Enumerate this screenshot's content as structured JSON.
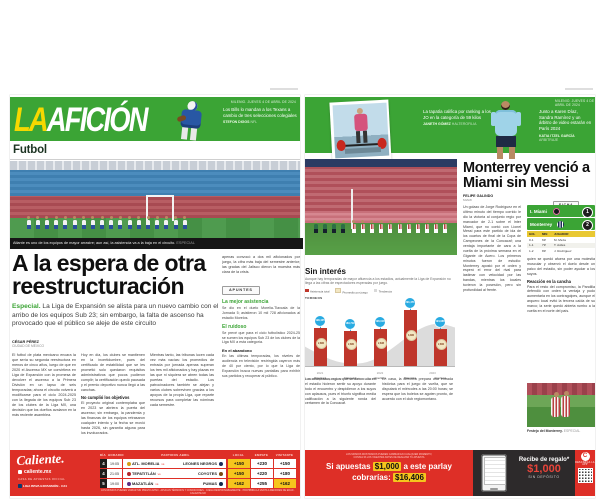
{
  "dateline": "MILENIO. JUEVES 4 DE ABRIL DE 2024",
  "left": {
    "brand_la": "LA",
    "brand_aficion": "AFICIÓN",
    "nfl_promo": {
      "text": "Los Bills lo mandan a los Texans a cambio de tres selecciones colegiales",
      "name": "STEFON DIGGS",
      "tag": "NFL"
    },
    "section": "Futbol",
    "photo_caption": "Atlante es uno de los equipos de mayor arrastre; aun así, la asistencia va a la baja en el circuito.",
    "photo_credit": "ESPECIAL",
    "headline": "A la espera de otra reestructuración",
    "deck_lead": "Especial.",
    "deck": " La Liga de Expansión se alista para un nuevo cambio con el arribo de los equipos Sub 23; sin embargo, la falta de ascenso ha provocado que el público se aleje de este circuito",
    "byline": "CÉSAR PÉREZ",
    "byline_city": "CIUDAD DE MÉXICO",
    "col1": "El futbol de plata mexicano encara la que sería su segunda reestructura en menos de cinco años, luego de que en 2020 el Ascenso MX se convirtiera en Liga de Expansión con la promesa de devolver el ascenso a la Primera División en un lapso de seis temporadas; ahora el circuito volverá a modificarse para el ciclo 2024-2025 con la llegada de los equipos Sub 23 de los clubes de la Liga MX, una decisión que los dueños avalaron en la más reciente asamblea.",
    "col2a": "Hoy en día, los clubes se mantienen en la incertidumbre, pues del certificado de estabilidad que se les prometió solo quedaron requisitos administrativos que pocos pudieron cumplir; la certificación quedó pausada y el premio deportivo nunca llegó a las canchas.",
    "col2_sub": "No cumplió los objetivos",
    "col2b": "El proyecto original contemplaba que en 2023 se abriera la puerta del ascenso; sin embargo, la pandemia y las finanzas de los equipos retrasaron cualquier intento y la fecha se movió hasta 2026, sin garantía alguna para los involucrados.",
    "col3": "Mientras tanto, las tribunas lucen cada vez más vacías: los promedios de entrada por jornada apenas superan los tres mil aficionados y hay plazas en las que ni siquiera se abren todas las puertas del estadio. Los patrocinadores también se alejan y varios clubes sobreviven gracias a los apoyos de la propia Liga, que reparte recursos para completar las nóminas cada semestre.",
    "col4_intro": "apenas convocó a dos mil aficionados por juego, la cifra más baja del semestre anterior; las gradas del Jalisco dieron la muestra más clara de la crisis.",
    "notes": {
      "chip": "APUNTES",
      "t1": "La mejor asistencia",
      "p1": "Se dio en el duelo Morelia-Tlaxcala de la Jornada 5; asistieron 10 mil 728 aficionados al estadio Morelos.",
      "t2": "El ruidoso",
      "p2": "Se prevé que para el ciclo futbolístico 2024-25 se sumen los equipos Sub 23 de los clubes de la Liga MX a esta categoría.",
      "sub": "En el abandono",
      "p3": "En las últimas temporadas, los niveles de audiencia en televisión restringida cayeron más de 40 por ciento, por lo que la Liga de Expansión busca nuevas pantallas para exhibir sus partidos y recuperar al público."
    }
  },
  "right": {
    "promo1": {
      "text": "La tapatía califica por ranking a los JO en la categoría de 59 kilos",
      "name": "JANETH GÓMEZ",
      "tag": "HALTEROFILIA"
    },
    "promo2": {
      "text": "Junto a Karen Díaz, Sandra Ramírez y un árbitro de video estarán en París 2024",
      "name": "KATIA ITZEL GARCÍA",
      "tag": "ARBITRAJE"
    },
    "headline": "Monterrey venció a Miami sin Messi",
    "byline": "FELIPE GALINDO",
    "byline_city": "MIAMI",
    "chip": "FICHA",
    "score": {
      "team1": "I. Miami",
      "score1": "1",
      "team2": "Monterrey",
      "score2": "2",
      "goals_headers": [
        "GOL",
        "MIN",
        "JUGADOR"
      ],
      "goals": [
        {
          "g": "0-1",
          "m": "69'",
          "p": "M. Meza"
        },
        {
          "g": "1-1",
          "m": "79'",
          "p": "T. Avilés"
        },
        {
          "g": "1-2",
          "m": "89'",
          "p": "J. Rodríguez"
        }
      ]
    },
    "col1": "Un golazo de Jorge Rodríguez en el último minuto del tiempo corrido le dio la victoria al conjunto regio por marcador de 2-1 sobre el Inter Miami, que no contó con Lionel Messi para este partido de ida de los cuartos de final de la Copa de Campeones de la Concacaf; una ventaja importante de cara a la vuelta de la próxima semana en el Gigante de Acero. Los primeros minutos fueron de estudio: Monterrey apostó por el orden y esperó el error del rival para lastimar con velocidad por las bandas, mientras los locales tuvieron la posesión, pero sin profundidad al frente.",
    "col2a": "quien se quedó afuera por una molestia muscular y observó el duelo desde un palco del estadio, sin poder ayudar a los suyos.",
    "col2_sub": "Reacción en la cancha",
    "col2b": "Para el resto del compromiso, la Pandilla defendió con orden la ventaja y pudo aumentarla en los contragolpes, aunque el arquero local evitó la tercera caída de su marco; la serie quedó abierta rumbo a la vuelta en el norte del país.",
    "col3": "Los aficionados regios que se dieron cita en el estadio hicieron sentir su apoyo durante todo el encuentro y despidieron a los suyos con aplausos, pues el triunfo significa media calificación a la siguiente ronda del certamen de la Concacaf.",
    "col4": "En casa, la directiva prepara una entrada histórica para el juego de vuelta, que se disputará el miércoles a las 20:00 horas; se espera que los boletos se agoten pronto, de acuerdo con el club regiomontano.",
    "photo_caption": "Festejo del Monterrey.",
    "photo_credit": "ESPECIAL"
  },
  "chart_data": {
    "type": "bar+area",
    "title": "Sin interés",
    "subtitle": "Aunque hay temporadas de mayor afluencia a los estadios, actualmente la Liga de Expansión no llega a las cifras de espectadores esperadas por juego.",
    "axis_label": "TORNEOS",
    "categories": [
      "Apertura",
      "Clausura",
      "Apertura",
      "Clausura",
      "Apertura"
    ],
    "years": [
      "2021",
      "2022",
      "2023"
    ],
    "series": [
      {
        "name": "Asistencia total",
        "values": [
          198435,
          183719,
          196018,
          291471,
          194688
        ],
        "labels": [
          "198,435",
          "183,719",
          "196,018",
          "291,471",
          "194,688"
        ]
      },
      {
        "name": "Promedio por juego",
        "values": [
          2886,
          2680,
          2838,
          3386,
          2866
        ],
        "labels": [
          "2,886",
          "2,680",
          "2,838",
          "3,386",
          "2,866"
        ]
      }
    ],
    "legend": [
      "Asistencia total",
      "Promedio por juego",
      "Tendencia"
    ],
    "ylim": [
      0,
      291471
    ],
    "source": "FUENTE: Liga de Expansión MX · INFOGRAFÍA: LA AFICIÓN"
  },
  "banner_caliente": {
    "brand": "Caliente.",
    "site": "caliente.mx",
    "official": "CASA DE APUESTAS OFICIAL",
    "league": "LIGA BBVA EXPANSIÓN · C24",
    "headers": {
      "day": "DÍA",
      "schedule": "HORARIO",
      "month": "PARTIDOS ABRIL",
      "local": "LOCAL",
      "draw": "EMPATE",
      "visit": "VISITANTE"
    },
    "vs": "vs",
    "rows": [
      {
        "day": "4",
        "time": "19:05",
        "home": "ATL. MORELIA",
        "away": "LEONES NEGROS",
        "local": "+150",
        "draw": "+230",
        "visit": "+150"
      },
      {
        "day": "4",
        "time": "21:05",
        "home": "TEPATITLÁN",
        "away": "COYOTES",
        "local": "+150",
        "draw": "+220",
        "visit": "+180"
      },
      {
        "day": "5",
        "time": "19:00",
        "home": "MAZATLÁN",
        "away": "PUMAS",
        "local": "+162",
        "draw": "+255",
        "visit": "+162"
      }
    ],
    "fineprint": "LOS MOMIOS PUEDEN VARIAR SIN PREVIO AVISO · APLICAN TÉRMINOS Y CONDICIONES · JUEGA RESPONSABLEMENTE · PROHIBIDA LA VENTA A MENORES DE EDAD · CALIENTE.MX"
  },
  "banner_parlay": {
    "fine1": "LOS MOMIOS MOSTRADOS PUEDEN CAMBIAR EN CUALQUIER MOMENTO;",
    "fine2": "CONSULTA LOS VIGENTES ANTES DE REALIZAR TU APUESTA",
    "l1a": "Si apuestas",
    "l1b": "$1,000",
    "l1c": "a este parlay",
    "l2a": "cobrarías:",
    "l2b": "$16,406",
    "gift": "Recibe de regalo*",
    "amount": "$1,000",
    "nodeposit": "SIN DEPÓSITO",
    "app": "DESCARGA LA APP"
  }
}
